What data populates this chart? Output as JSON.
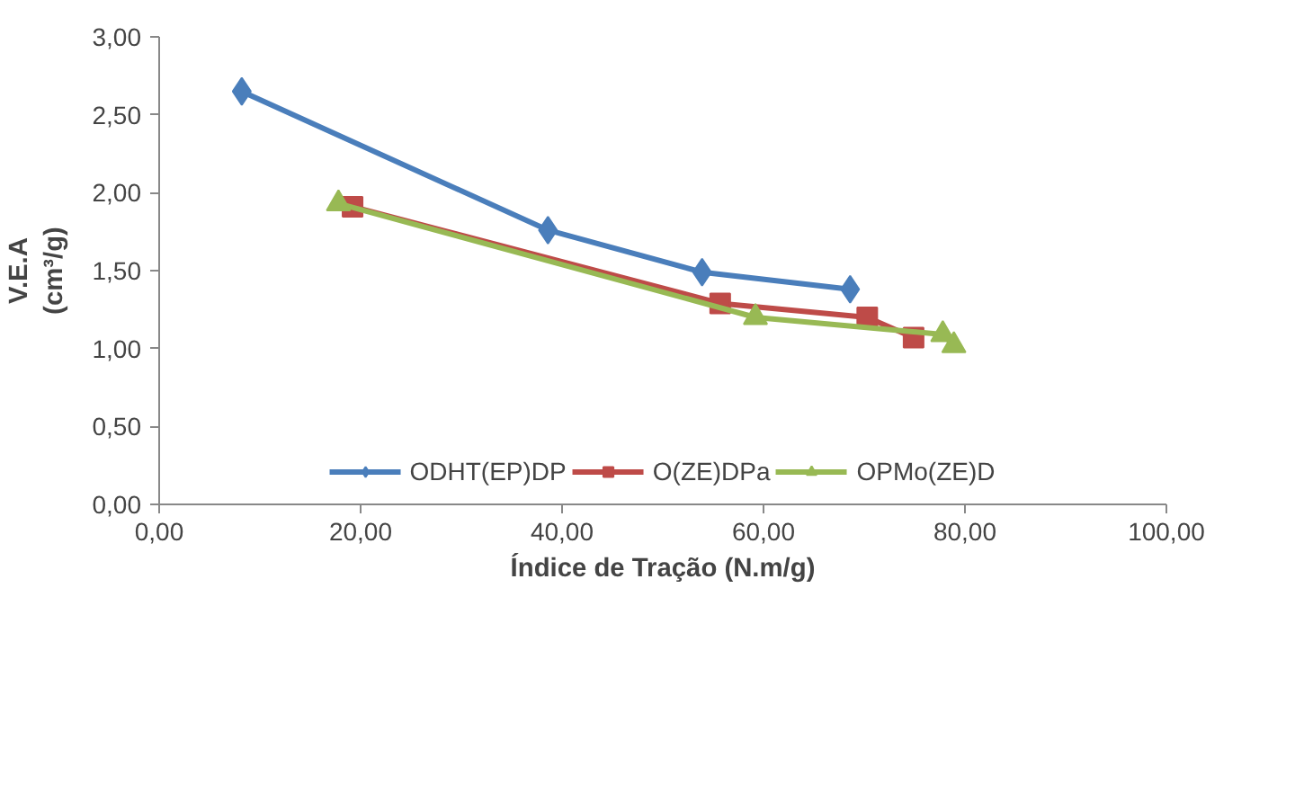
{
  "chart_data": {
    "type": "line",
    "xlabel": "Índice de Tração (N.m/g)",
    "ylabel": "V.E.A\n(cm³/g)",
    "xlim": [
      0,
      100
    ],
    "ylim": [
      0,
      3
    ],
    "xticks": [
      {
        "value": 0,
        "label": "0,00"
      },
      {
        "value": 20,
        "label": "20,00"
      },
      {
        "value": 40,
        "label": "40,00"
      },
      {
        "value": 60,
        "label": "60,00"
      },
      {
        "value": 80,
        "label": "80,00"
      },
      {
        "value": 100,
        "label": "100,00"
      }
    ],
    "yticks": [
      {
        "value": 0,
        "label": "0,00"
      },
      {
        "value": 0.5,
        "label": "0,50"
      },
      {
        "value": 1,
        "label": "1,00"
      },
      {
        "value": 1.5,
        "label": "1,50"
      },
      {
        "value": 2,
        "label": "2,00"
      },
      {
        "value": 2.5,
        "label": "2,50"
      },
      {
        "value": 3,
        "label": "3,00"
      }
    ],
    "grid": false,
    "legend": "bottom",
    "series": [
      {
        "name": "ODHT(EP)DP",
        "color": "#4a7ebb",
        "marker": "diamond",
        "x": [
          8.2,
          38.6,
          53.9,
          68.6
        ],
        "values": [
          2.65,
          1.76,
          1.49,
          1.38
        ]
      },
      {
        "name": "O(ZE)DPa",
        "color": "#be4b48",
        "marker": "square",
        "x": [
          19.2,
          55.7,
          70.3,
          74.9
        ],
        "values": [
          1.91,
          1.29,
          1.2,
          1.07
        ]
      },
      {
        "name": "OPMo(ZE)D",
        "color": "#98b954",
        "marker": "triangle",
        "x": [
          17.8,
          59.2,
          77.8,
          78.9
        ],
        "values": [
          1.93,
          1.2,
          1.09,
          1.02
        ]
      }
    ]
  }
}
